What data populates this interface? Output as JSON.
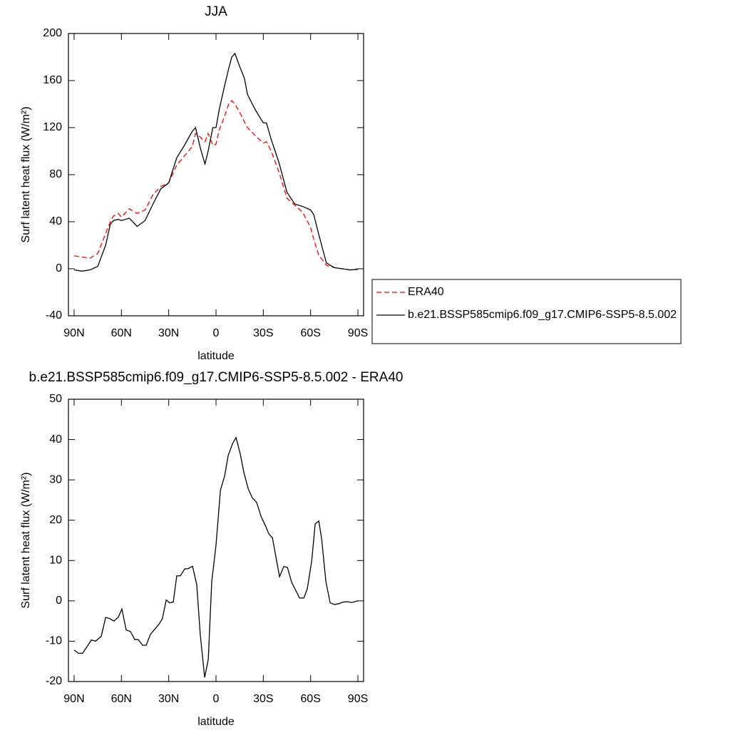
{
  "chart_data": [
    {
      "type": "line",
      "title": "JJA",
      "xlabel": "latitude",
      "ylabel": "Surf latent heat flux (W/m²)",
      "x": [
        90,
        85,
        80,
        75,
        70,
        67,
        65,
        62,
        60,
        55,
        50,
        45,
        40,
        35,
        30,
        25,
        20,
        15,
        13,
        10,
        7,
        5,
        2,
        0,
        -2,
        -5,
        -8,
        -10,
        -12,
        -15,
        -18,
        -20,
        -25,
        -30,
        -32,
        -35,
        -40,
        -45,
        -50,
        -55,
        -60,
        -62,
        -65,
        -70,
        -75,
        -80,
        -85,
        -90
      ],
      "series": [
        {
          "name": "ERA40",
          "color": "#ff0000",
          "dashed": true,
          "values": [
            11,
            10,
            9,
            13,
            30,
            40,
            45,
            47,
            44,
            51,
            47,
            50,
            63,
            70,
            73,
            88,
            96,
            104,
            115,
            112,
            108,
            115,
            105,
            106,
            118,
            128,
            140,
            143,
            140,
            133,
            125,
            120,
            113,
            107,
            108,
            100,
            82,
            60,
            54,
            48,
            35,
            25,
            12,
            3,
            1,
            0,
            -1,
            0
          ]
        },
        {
          "name": "b.e21.BSSP585cmip6.f09_g17.CMIP6-SSP5-8.5.002",
          "color": "#000000",
          "dashed": false,
          "values": [
            -1,
            -2,
            -1,
            2,
            20,
            38,
            41,
            42,
            41,
            43,
            36,
            41,
            55,
            68,
            73,
            94,
            105,
            117,
            120,
            103,
            89,
            100,
            120,
            120,
            135,
            153,
            170,
            180,
            183,
            172,
            162,
            148,
            135,
            124,
            124,
            110,
            90,
            65,
            55,
            53,
            50,
            46,
            30,
            5,
            1,
            0,
            -1,
            -0.5
          ]
        }
      ],
      "xlim": [
        93.6,
        -93.6
      ],
      "xticks": [
        {
          "value": 90,
          "label": "90N"
        },
        {
          "value": 60,
          "label": "60N"
        },
        {
          "value": 30,
          "label": "30N"
        },
        0,
        {
          "value": -30,
          "label": "30S"
        },
        {
          "value": -60,
          "label": "60S"
        },
        {
          "value": -90,
          "label": "90S"
        }
      ],
      "ylim": [
        -40,
        200
      ],
      "yticks": [
        200,
        160,
        120,
        80,
        40,
        0,
        -40
      ],
      "legend": "right"
    },
    {
      "type": "line",
      "title": "b.e21.BSSP585cmip6.f09_g17.CMIP6-SSP5-8.5.002 - ERA40",
      "xlabel": "latitude",
      "ylabel": "Surf latent heat flux (W/m²)",
      "x": [
        90,
        87.3,
        84.6,
        79,
        76.4,
        72.8,
        70,
        67.4,
        64.7,
        61.9,
        59.7,
        57,
        54.3,
        51.5,
        49.3,
        46.6,
        44.3,
        41.6,
        36.2,
        34,
        31.6,
        29.4,
        27.1,
        24.9,
        22.6,
        19.9,
        17.6,
        14.9,
        12.2,
        10,
        7.2,
        4.9,
        2.7,
        0,
        -2.8,
        -5.5,
        -7.7,
        -10.5,
        -12.7,
        -15.4,
        -17.7,
        -20.4,
        -23.1,
        -25.8,
        -28.6,
        -31.3,
        -33.5,
        -35.8,
        -40.3,
        -43,
        -45.3,
        -48,
        -53,
        -55.7,
        -57.9,
        -60.7,
        -62.9,
        -65.2,
        -67,
        -69.7,
        -72.4,
        -75.2,
        -77.9,
        -80.6,
        -83.3,
        -86,
        -90
      ],
      "series": [
        {
          "color": "#000000",
          "dashed": false,
          "values": [
            -12.2,
            -13,
            -13,
            -9.7,
            -10,
            -8.8,
            -4.1,
            -4.4,
            -5,
            -4,
            -2,
            -7.2,
            -7.6,
            -9.6,
            -9.6,
            -11,
            -11,
            -8.3,
            -5.8,
            -4.4,
            0.2,
            -0.5,
            -0.3,
            6.2,
            6.2,
            7.9,
            8,
            8.6,
            4,
            -8.3,
            -19,
            -14.5,
            4.8,
            13.8,
            27.4,
            31,
            36,
            39,
            40.5,
            36.4,
            31.8,
            27.8,
            25.5,
            24.4,
            20.9,
            18.7,
            16.6,
            15.6,
            6,
            8.5,
            8.3,
            4.6,
            0.7,
            0.7,
            3,
            9.9,
            19.1,
            19.8,
            15.4,
            4.8,
            -0.5,
            -0.9,
            -0.7,
            -0.3,
            -0.2,
            -0.4,
            0
          ]
        }
      ],
      "xlim": [
        93.6,
        -93.6
      ],
      "xticks": [
        {
          "value": 90,
          "label": "90N"
        },
        {
          "value": 60,
          "label": "60N"
        },
        {
          "value": 30,
          "label": "30N"
        },
        0,
        {
          "value": -30,
          "label": "30S"
        },
        {
          "value": -60,
          "label": "60S"
        },
        {
          "value": -90,
          "label": "90S"
        }
      ],
      "ylim": [
        -20,
        50
      ],
      "yticks": [
        -20,
        -10,
        0,
        10,
        20,
        30,
        40,
        50
      ]
    }
  ]
}
